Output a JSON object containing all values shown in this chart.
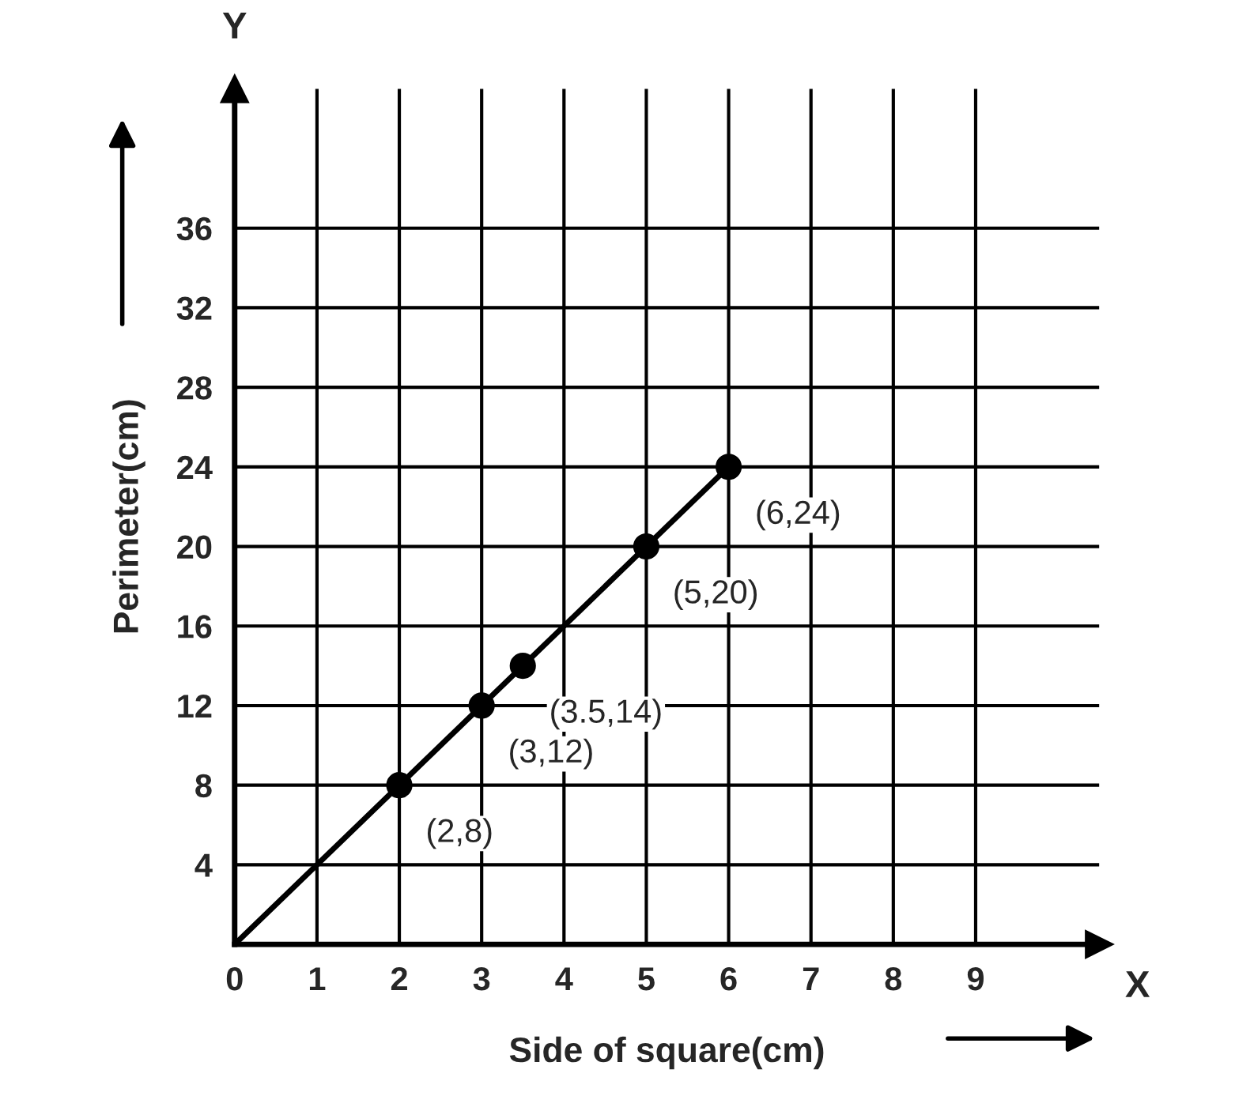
{
  "chart_data": {
    "type": "line",
    "xlabel": "Side of square(cm)",
    "ylabel": "Perimeter(cm)",
    "series": [
      {
        "color": "#000000",
        "x": [
          0,
          6
        ],
        "values": [
          0,
          24
        ],
        "marker": "none"
      },
      {
        "type": "scatter",
        "color": "#000000",
        "x": [
          2,
          3,
          3.5,
          5,
          6
        ],
        "values": [
          8,
          12,
          14,
          20,
          24
        ],
        "marker": "circle"
      }
    ],
    "xlim": [
      0,
      10.5
    ],
    "ylim": [
      0,
      43
    ],
    "xticks": [
      0,
      1,
      2,
      3,
      4,
      5,
      6,
      7,
      8,
      9
    ],
    "yticks": [
      {
        "value": 0,
        "label": null
      },
      4,
      8,
      12,
      16,
      20,
      24,
      28,
      32,
      36
    ],
    "grid": true,
    "annotations": [
      {
        "text": "(2,8)",
        "x": 2,
        "y": 8
      },
      {
        "text": "(3,12)",
        "x": 3,
        "y": 12
      },
      {
        "text": "(3.5,14)",
        "x": 3.5,
        "y": 14
      },
      {
        "text": "(5,20)",
        "x": 5,
        "y": 20
      },
      {
        "text": "(6,24)",
        "x": 6,
        "y": 24
      },
      "X",
      "Y"
    ]
  }
}
